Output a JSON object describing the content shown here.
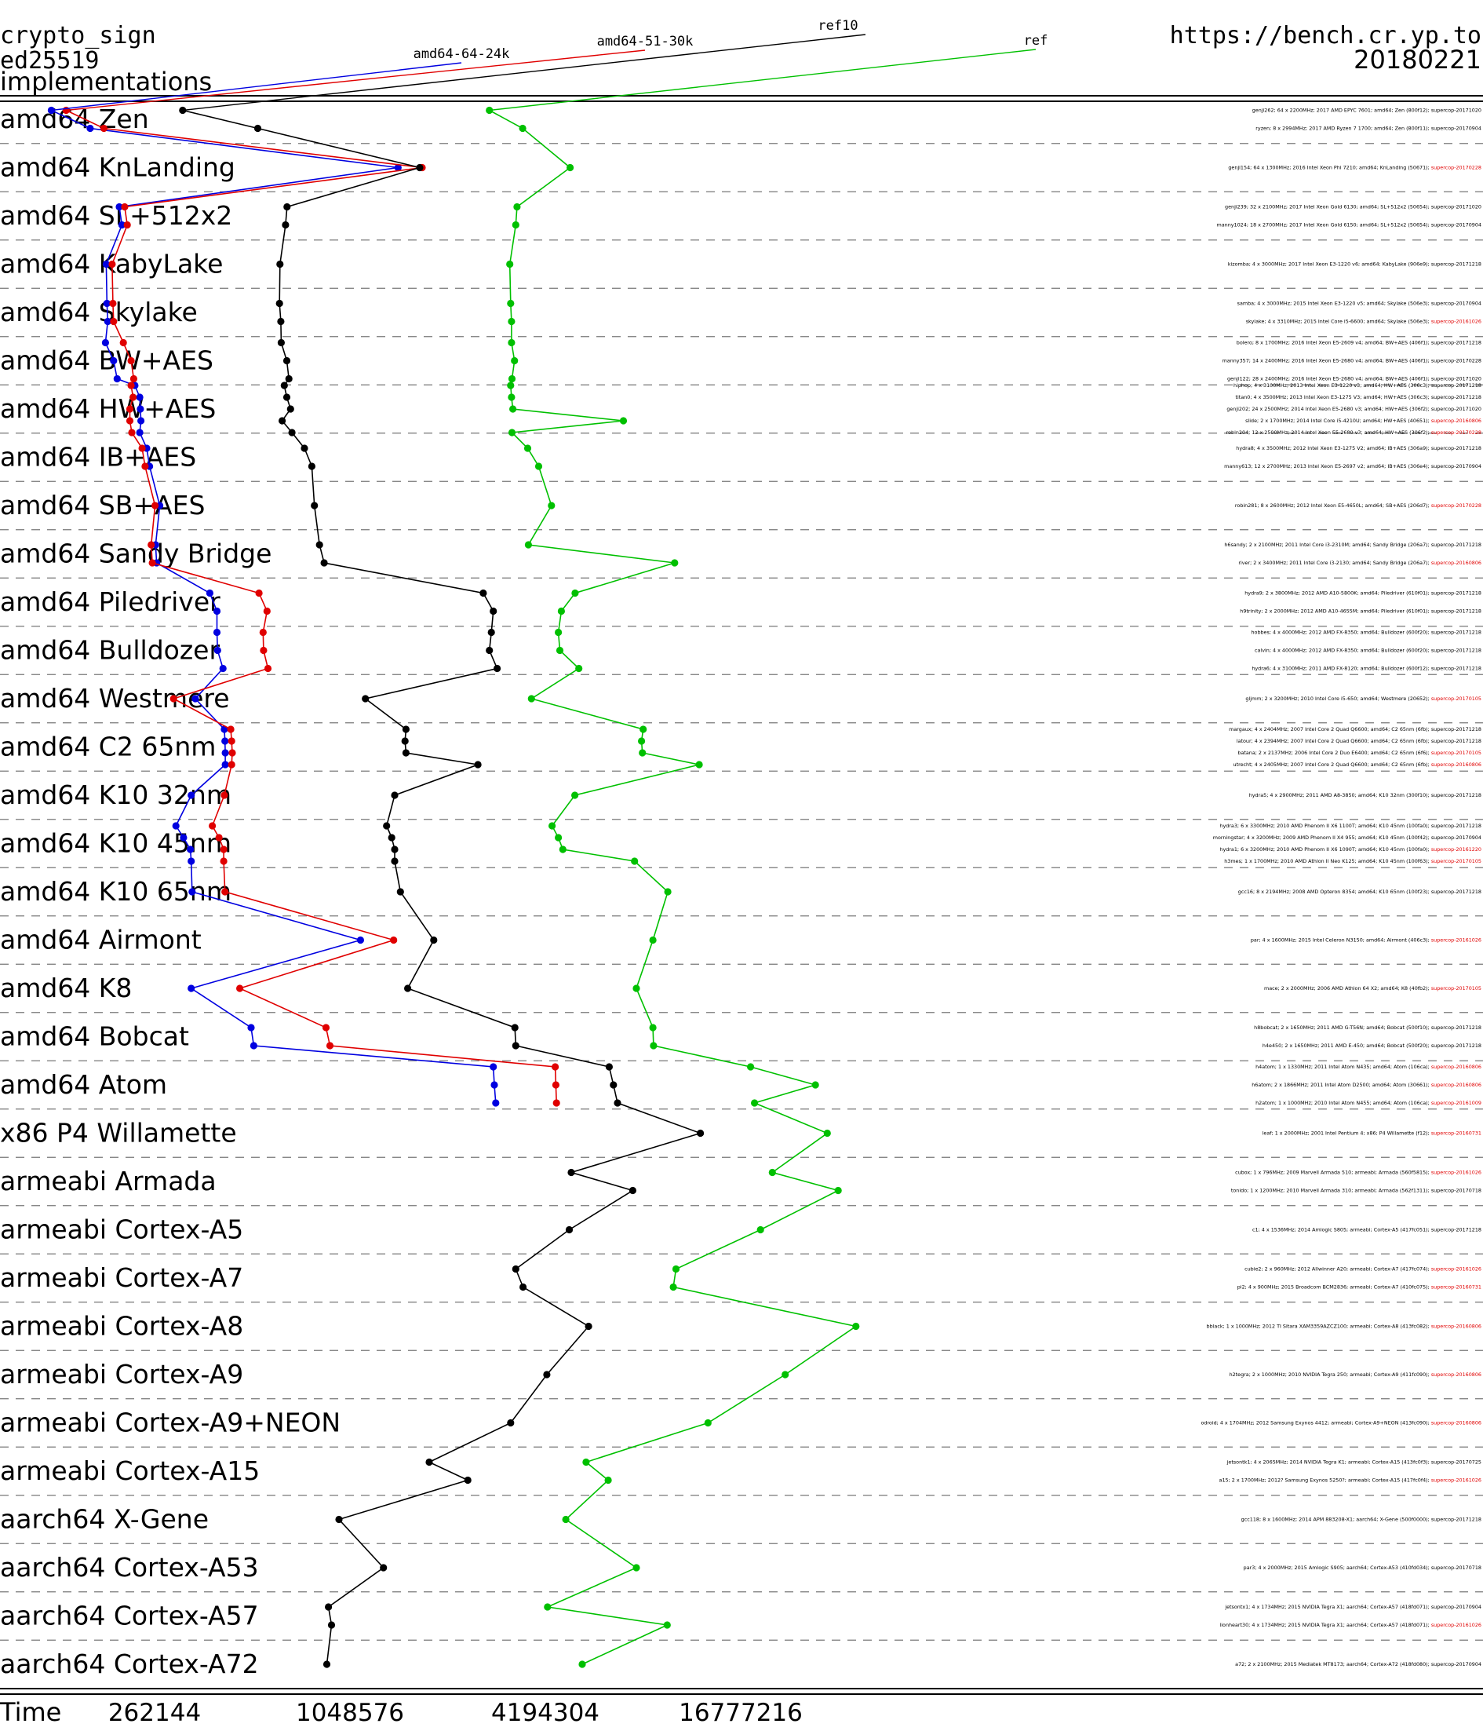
{
  "header": {
    "line1": "crypto_sign",
    "line2": "ed25519",
    "line3": "implementations",
    "url": "https://bench.cr.yp.to",
    "date": "20180221"
  },
  "colors": {
    "amd64-64-24k": "#0000e0",
    "amd64-51-30k": "#e00000",
    "ref10": "#000000",
    "ref": "#00c000",
    "report_old": "#000000",
    "report_new": "#e00000"
  },
  "chart_data": {
    "type": "line",
    "orientation": "horizontal",
    "x_scale": "log2",
    "xlabel": "Time",
    "x_ticks": [
      262144,
      1048576,
      4194304,
      16777216
    ],
    "x_ticks_labels": [
      "262144",
      "1048576",
      "4194304",
      "16777216"
    ],
    "legend": [
      "amd64-64-24k",
      "amd64-51-30k",
      "ref10",
      "ref"
    ],
    "categories": [
      "amd64 Zen",
      "amd64 KnLanding",
      "amd64 SL+512x2",
      "amd64 KabyLake",
      "amd64 Skylake",
      "amd64 BW+AES",
      "amd64 HW+AES",
      "amd64 IB+AES",
      "amd64 SB+AES",
      "amd64 Sandy Bridge",
      "amd64 Piledriver",
      "amd64 Bulldozer",
      "amd64 Westmere",
      "amd64 C2 65nm",
      "amd64 K10 32nm",
      "amd64 K10 45nm",
      "amd64 K10 65nm",
      "amd64 Airmont",
      "amd64 K8",
      "amd64 Bobcat",
      "amd64 Atom",
      "x86 P4 Willamette",
      "armeabi Armada",
      "armeabi Cortex-A5",
      "armeabi Cortex-A7",
      "armeabi Cortex-A8",
      "armeabi Cortex-A9",
      "armeabi Cortex-A9+NEON",
      "armeabi Cortex-A15",
      "aarch64 X-Gene",
      "aarch64 Cortex-A53",
      "aarch64 Cortex-A57",
      "aarch64 Cortex-A72"
    ],
    "machines": [
      {
        "cat": 0,
        "text": "genji262; 64 x 2200MHz; 2017 AMD EPYC 7601; amd64; Zen (800f12); ",
        "report": "supercop-20171020",
        "recent": false,
        "values": [
          126000,
          140000,
          320000,
          2820000
        ]
      },
      {
        "cat": 0,
        "text": "ryzen; 8 x 2994MHz; 2017 AMD Ryzen 7 1700; amd64; Zen (800f11); ",
        "report": "supercop-20170904",
        "recent": false,
        "values": [
          166000,
          183000,
          545000,
          3570000
        ]
      },
      {
        "cat": 1,
        "text": "genji154; 64 x 1300MHz; 2016 Intel Xeon Phi 7210; amd64; KnLanding (50671); ",
        "report": "supercop-20170228",
        "recent": true,
        "values": [
          1475000,
          1750000,
          1720000,
          5000000
        ]
      },
      {
        "cat": 2,
        "text": "genji239; 32 x 2100MHz; 2017 Intel Xeon Gold 6130; amd64; SL+512x2 (50654); ",
        "report": "supercop-20171020",
        "recent": false,
        "values": [
          204000,
          212000,
          671000,
          3430000
        ]
      },
      {
        "cat": 2,
        "text": "manny1024; 18 x 2700MHz; 2017 Intel Xeon Gold 6150; amd64; SL+512x2 (50654); ",
        "report": "supercop-20170904",
        "recent": false,
        "values": [
          208000,
          216000,
          664000,
          3400000
        ]
      },
      {
        "cat": 3,
        "text": "kizomba; 4 x 3000MHz; 2017 Intel Xeon E3-1220 v6; amd64; KabyLake (906e9); ",
        "report": "supercop-20171218",
        "recent": false,
        "values": [
          186000,
          194000,
          638000,
          3260000
        ]
      },
      {
        "cat": 4,
        "text": "samba; 4 x 3000MHz; 2015 Intel Xeon E3-1220 v5; amd64; Skylake (506e3); ",
        "report": "supercop-20170904",
        "recent": false,
        "values": [
          187000,
          195000,
          636000,
          3280000
        ]
      },
      {
        "cat": 4,
        "text": "skylake; 4 x 3310MHz; 2015 Intel Core i5-6600; amd64; Skylake (506e3); ",
        "report": "supercop-20161026",
        "recent": true,
        "values": [
          188000,
          196000,
          642000,
          3300000
        ]
      },
      {
        "cat": 5,
        "text": "bolero; 8 x 1700MHz; 2016 Intel Xeon E5-2609 v4; amd64; BW+AES (406f1); ",
        "report": "supercop-20171218",
        "recent": false,
        "values": [
          185000,
          210000,
          644000,
          3300000
        ]
      },
      {
        "cat": 5,
        "text": "manny357; 14 x 2400MHz; 2016 Intel Xeon E5-2680 v4; amd64; BW+AES (406f1); ",
        "report": "supercop-20170228",
        "recent": false,
        "values": [
          196000,
          222000,
          670000,
          3370000
        ]
      },
      {
        "cat": 5,
        "text": "genji122; 28 x 2400MHz; 2016 Intel Xeon E5-2680 v4; amd64; BW+AES (406f1); ",
        "report": "supercop-20171020",
        "recent": false,
        "values": [
          201000,
          226000,
          680000,
          3310000
        ]
      },
      {
        "cat": 6,
        "text": "hiphop; 4 x 3100MHz; 2013 Intel Xeon E3-1220 v3; amd64; HW+AES (306c3); ",
        "report": "supercop-20171218",
        "recent": false,
        "values": [
          228000,
          222000,
          658000,
          3280000
        ]
      },
      {
        "cat": 6,
        "text": "titan0; 4 x 3500MHz; 2013 Intel Xeon E3-1275 V3; amd64; HW+AES (306c3); ",
        "report": "supercop-20171218",
        "recent": false,
        "values": [
          236000,
          225000,
          670000,
          3300000
        ]
      },
      {
        "cat": 6,
        "text": "genji202; 24 x 2500MHz; 2014 Intel Xeon E5-2680 v3; amd64; HW+AES (306f2); ",
        "report": "supercop-20171020",
        "recent": false,
        "values": [
          237000,
          220000,
          688000,
          3330000
        ]
      },
      {
        "cat": 6,
        "text": "slide; 2 x 1700MHz; 2014 Intel Core i5-4210U; amd64; HW+AES (40651); ",
        "report": "supercop-20160806",
        "recent": true,
        "values": [
          238000,
          220000,
          648000,
          7300000
        ]
      },
      {
        "cat": 6,
        "text": "robin204; 12 x 2500MHz; 2014 Intel Xeon E5-2680 v3; amd64; HW+AES (306f2); ",
        "report": "supercop-20170228",
        "recent": true,
        "values": [
          236000,
          223000,
          695000,
          3310000
        ]
      },
      {
        "cat": 7,
        "text": "hydra8; 4 x 3500MHz; 2012 Intel Xeon E3-1275 V2; amd64; IB+AES (306a9); ",
        "report": "supercop-20171218",
        "recent": false,
        "values": [
          248000,
          240000,
          759000,
          3700000
        ]
      },
      {
        "cat": 7,
        "text": "manny613; 12 x 2700MHz; 2013 Intel Xeon E5-2697 v2; amd64; IB+AES (306e4); ",
        "report": "supercop-20170904",
        "recent": false,
        "values": [
          253000,
          245000,
          800000,
          4000000
        ]
      },
      {
        "cat": 8,
        "text": "robin281; 8 x 2600MHz; 2012 Intel Xeon E5-4650L; amd64; SB+AES (206d7); ",
        "report": "supercop-20170228",
        "recent": true,
        "values": [
          272000,
          263000,
          815000,
          4380000
        ]
      },
      {
        "cat": 9,
        "text": "h6sandy; 2 x 2100MHz; 2011 Intel Core i3-2310M; amd64; Sandy Bridge (206a7); ",
        "report": "supercop-20171218",
        "recent": false,
        "values": [
          264000,
          256000,
          845000,
          3720000
        ]
      },
      {
        "cat": 9,
        "text": "river; 2 x 3400MHz; 2011 Intel Core i3-2130; amd64; Sandy Bridge (206a7); ",
        "report": "supercop-20160806",
        "recent": true,
        "values": [
          266000,
          258000,
          873000,
          10500000
        ]
      },
      {
        "cat": 10,
        "text": "hydra9; 2 x 3800MHz; 2012 AMD A10-5800K; amd64; Piledriver (610f01); ",
        "report": "supercop-20171218",
        "recent": false,
        "values": [
          388000,
          550000,
          2700000,
          5180000
        ]
      },
      {
        "cat": 10,
        "text": "h9trinity; 2 x 2000MHz; 2012 AMD A10-4655M; amd64; Piledriver (610f01); ",
        "report": "supercop-20171218",
        "recent": false,
        "values": [
          408000,
          582000,
          2900000,
          4700000
        ]
      },
      {
        "cat": 11,
        "text": "hobbes; 4 x 4000MHz; 2012 AMD FX-8350; amd64; Bulldozer (600f20); ",
        "report": "supercop-20171218",
        "recent": false,
        "values": [
          408000,
          566000,
          2860000,
          4600000
        ]
      },
      {
        "cat": 11,
        "text": "calvin; 4 x 4000MHz; 2012 AMD FX-8350; amd64; Bulldozer (600f20); ",
        "report": "supercop-20171218",
        "recent": false,
        "values": [
          410000,
          568000,
          2820000,
          4650000
        ]
      },
      {
        "cat": 11,
        "text": "hydra6; 4 x 3100MHz; 2011 AMD FX-8120; amd64; Bulldozer (600f12); ",
        "report": "supercop-20171218",
        "recent": false,
        "values": [
          426000,
          586000,
          2980000,
          5320000
        ]
      },
      {
        "cat": 12,
        "text": "gljmm; 2 x 3200MHz; 2010 Intel Core i5-650; amd64; Westmere (20652); ",
        "report": "supercop-20170105",
        "recent": true,
        "values": [
          350000,
          300000,
          1170000,
          3800000
        ]
      },
      {
        "cat": 13,
        "text": "margaux; 4 x 2404MHz; 2007 Intel Core 2 Quad Q6600; amd64; C2 65nm (6fb); ",
        "report": "supercop-20171218",
        "recent": false,
        "values": [
          430000,
          450000,
          1560000,
          8400000
        ]
      },
      {
        "cat": 13,
        "text": "latour; 4 x 2394MHz; 2007 Intel Core 2 Quad Q6600; amd64; C2 65nm (6fb); ",
        "report": "supercop-20171218",
        "recent": false,
        "values": [
          432000,
          453000,
          1550000,
          8300000
        ]
      },
      {
        "cat": 13,
        "text": "batana; 2 x 2137MHz; 2006 Intel Core 2 Duo E6400; amd64; C2 65nm (6f6); ",
        "report": "supercop-20170105",
        "recent": true,
        "values": [
          433000,
          455000,
          1560000,
          8350000
        ]
      },
      {
        "cat": 13,
        "text": "utrecht; 4 x 2405MHz; 2007 Intel Core 2 Quad Q6600; amd64; C2 65nm (6fb); ",
        "report": "supercop-20160806",
        "recent": true,
        "values": [
          433000,
          453000,
          2600000,
          12500000
        ]
      },
      {
        "cat": 14,
        "text": "hydra5; 4 x 2900MHz; 2011 AMD A8-3850; amd64; K10 32nm (300f10); ",
        "report": "supercop-20171218",
        "recent": false,
        "values": [
          340000,
          430000,
          1440000,
          5170000
        ]
      },
      {
        "cat": 15,
        "text": "hydra3; 6 x 3300MHz; 2010 AMD Phenom II X6 1100T; amd64; K10 45nm (100fa0); ",
        "report": "supercop-20171218",
        "recent": false,
        "values": [
          305000,
          395000,
          1360000,
          4400000
        ]
      },
      {
        "cat": 15,
        "text": "morningstar; 4 x 3200MHz; 2009 AMD Phenom II X4 955; amd64; K10 45nm (100f42); ",
        "report": "supercop-20170904",
        "recent": false,
        "values": [
          322000,
          414000,
          1410000,
          4600000
        ]
      },
      {
        "cat": 15,
        "text": "hydra1; 6 x 3200MHz; 2010 AMD Phenom II X6 1090T; amd64; K10 45nm (100fa0); ",
        "report": "supercop-20161220",
        "recent": true,
        "values": [
          338000,
          428000,
          1440000,
          4750000
        ]
      },
      {
        "cat": 15,
        "text": "h3mes; 1 x 1700MHz; 2010 AMD Athlon II Neo K125; amd64; K10 45nm (100f63); ",
        "report": "supercop-20170105",
        "recent": true,
        "values": [
          340000,
          428000,
          1440000,
          7900000
        ]
      },
      {
        "cat": 16,
        "text": "gcc16; 8 x 2194MHz; 2008 AMD Opteron 8354; amd64; K10 65nm (100f23); ",
        "report": "supercop-20171218",
        "recent": false,
        "values": [
          342000,
          432000,
          1500000,
          10000000
        ]
      },
      {
        "cat": 17,
        "text": "par; 4 x 1600MHz; 2015 Intel Celeron N3150; amd64; Airmont (406c3); ",
        "report": "supercop-20161026",
        "recent": true,
        "values": [
          1130000,
          1430000,
          1900000,
          9000000
        ]
      },
      {
        "cat": 18,
        "text": "mace; 2 x 2000MHz; 2006 AMD Athlon 64 X2; amd64; K8 (40fb2); ",
        "report": "supercop-20170105",
        "recent": true,
        "values": [
          340000,
          480000,
          1580000,
          8000000
        ]
      },
      {
        "cat": 19,
        "text": "h8bobcat; 2 x 1650MHz; 2011 AMD G-T56N; amd64; Bobcat (500f10); ",
        "report": "supercop-20171218",
        "recent": false,
        "values": [
          520000,
          885000,
          3380000,
          9000000
        ]
      },
      {
        "cat": 19,
        "text": "h4e450; 2 x 1650MHz; 2011 AMD E-450; amd64; Bobcat (500f20); ",
        "report": "supercop-20171218",
        "recent": false,
        "values": [
          530000,
          910000,
          3400000,
          9040000
        ]
      },
      {
        "cat": 20,
        "text": "h4atom; 1 x 1330MHz; 2011 Intel Atom N435; amd64; Atom (106ca); ",
        "report": "supercop-20160806",
        "recent": true,
        "values": [
          2900000,
          4500000,
          6600000,
          18000000
        ]
      },
      {
        "cat": 20,
        "text": "h6atom; 2 x 1866MHz; 2011 Intel Atom D2500; amd64; Atom (30661); ",
        "report": "supercop-20160806",
        "recent": true,
        "values": [
          2920000,
          4520000,
          6800000,
          28500000
        ]
      },
      {
        "cat": 20,
        "text": "h2atom; 1 x 1000MHz; 2010 Intel Atom N455; amd64; Atom (106ca); ",
        "report": "supercop-20161009",
        "recent": true,
        "values": [
          2950000,
          4540000,
          7000000,
          18500000
        ]
      },
      {
        "cat": 21,
        "text": "leaf; 1 x 2000MHz; 2001 Intel Pentium 4; x86; P4 Willamette (f12); ",
        "report": "supercop-20160731",
        "recent": true,
        "values": [
          null,
          null,
          12600000,
          31000000
        ]
      },
      {
        "cat": 22,
        "text": "cubox; 1 x 796MHz; 2009 Marvell Armada 510; armeabi; Armada (560f5815); ",
        "report": "supercop-20161026",
        "recent": true,
        "values": [
          null,
          null,
          5040000,
          21000000
        ]
      },
      {
        "cat": 22,
        "text": "tonido; 1 x 1200MHz; 2010 Marvell Armada 310; armeabi; Armada (562f1311); ",
        "report": "supercop-20170718",
        "recent": false,
        "values": [
          null,
          null,
          7800000,
          33500000
        ]
      },
      {
        "cat": 23,
        "text": "c1; 4 x 1536MHz; 2014 Amlogic S805; armeabi; Cortex-A5 (417fc051); ",
        "report": "supercop-20171218",
        "recent": false,
        "values": [
          null,
          null,
          4970000,
          19300000
        ]
      },
      {
        "cat": 24,
        "text": "cubie2; 2 x 960MHz; 2012 Allwinner A20; armeabi; Cortex-A7 (417fc074); ",
        "report": "supercop-20161026",
        "recent": true,
        "values": [
          null,
          null,
          3400000,
          10600000
        ]
      },
      {
        "cat": 24,
        "text": "pi2; 4 x 900MHz; 2015 Broadcom BCM2836; armeabi; Cortex-A7 (410fc075); ",
        "report": "supercop-20160731",
        "recent": true,
        "values": [
          null,
          null,
          3580000,
          10400000
        ]
      },
      {
        "cat": 25,
        "text": "bblack; 1 x 1000MHz; 2012 TI Sitara XAM3359AZCZ100; armeabi; Cortex-A8 (413fc082); ",
        "report": "supercop-20160806",
        "recent": true,
        "values": [
          null,
          null,
          5700000,
          38000000
        ]
      },
      {
        "cat": 26,
        "text": "h2tegra; 2 x 1000MHz; 2010 NVIDIA Tegra 250; armeabi; Cortex-A9 (411fc090); ",
        "report": "supercop-20160806",
        "recent": true,
        "values": [
          null,
          null,
          4240000,
          23000000
        ]
      },
      {
        "cat": 27,
        "text": "odroid; 4 x 1704MHz; 2012 Samsung Exynos 4412; armeabi; Cortex-A9+NEON (413fc090); ",
        "report": "supercop-20160806",
        "recent": true,
        "values": [
          null,
          null,
          3280000,
          13300000
        ]
      },
      {
        "cat": 28,
        "text": "jetsontk1; 4 x 2065MHz; 2014 NVIDIA Tegra K1; armeabi; Cortex-A15 (413fc0f3); ",
        "report": "supercop-20170725",
        "recent": false,
        "values": [
          null,
          null,
          1840000,
          5600000
        ]
      },
      {
        "cat": 28,
        "text": "a15; 2 x 1700MHz; 2012? Samsung Exynos 5250?; armeabi; Cortex-A15 (417fc0f4); ",
        "report": "supercop-20161026",
        "recent": true,
        "values": [
          null,
          null,
          2420000,
          6550000
        ]
      },
      {
        "cat": 29,
        "text": "gcc118; 8 x 1600MHz; 2014 APM 883208-X1; aarch64; X-Gene (500f0000); ",
        "report": "supercop-20171218",
        "recent": false,
        "values": [
          null,
          null,
          970000,
          4850000
        ]
      },
      {
        "cat": 30,
        "text": "par3; 4 x 2000MHz; 2015 Amlogic S905; aarch64; Cortex-A53 (410fd034); ",
        "report": "supercop-20170718",
        "recent": false,
        "values": [
          null,
          null,
          1330000,
          8000000
        ]
      },
      {
        "cat": 31,
        "text": "jetsontx1; 4 x 1734MHz; 2015 NVIDIA Tegra X1; aarch64; Cortex-A57 (418fd071); ",
        "report": "supercop-20170904",
        "recent": false,
        "values": [
          null,
          null,
          900000,
          4260000
        ]
      },
      {
        "cat": 31,
        "text": "lionheart30; 4 x 1734MHz; 2015 NVIDIA Tegra X1; aarch64; Cortex-A57 (418fd071); ",
        "report": "supercop-20161026",
        "recent": true,
        "values": [
          null,
          null,
          920000,
          9960000
        ]
      },
      {
        "cat": 32,
        "text": "a72; 2 x 2100MHz; 2015 Mediatek MT8173; aarch64; Cortex-A72 (418fd080); ",
        "report": "supercop-20170904",
        "recent": false,
        "values": [
          null,
          null,
          890000,
          5450000
        ]
      }
    ]
  }
}
